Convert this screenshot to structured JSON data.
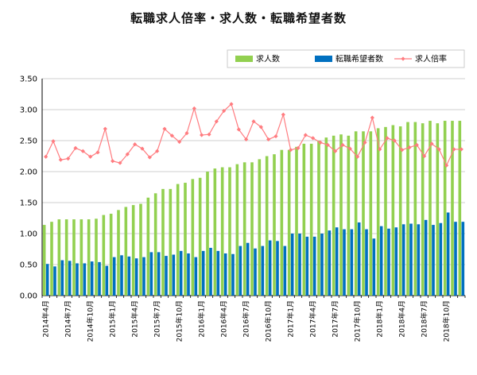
{
  "chart_data": {
    "type": "bar",
    "title": "転職求人倍率・求人数・転職希望者数",
    "xlabel": "",
    "ylabel": "",
    "ylim": [
      0,
      3.5
    ],
    "yticks": [
      "0.00",
      "0.50",
      "1.00",
      "1.50",
      "2.00",
      "2.50",
      "3.00",
      "3.50"
    ],
    "grid": "horizontal",
    "legend_position": "top-right",
    "categories": [
      "2014年4月",
      "2014年5月",
      "2014年6月",
      "2014年7月",
      "2014年8月",
      "2014年9月",
      "2014年10月",
      "2014年11月",
      "2014年12月",
      "2015年1月",
      "2015年2月",
      "2015年3月",
      "2015年4月",
      "2015年5月",
      "2015年6月",
      "2015年7月",
      "2015年8月",
      "2015年9月",
      "2015年10月",
      "2015年11月",
      "2015年12月",
      "2016年1月",
      "2016年2月",
      "2016年3月",
      "2016年4月",
      "2016年5月",
      "2016年6月",
      "2016年7月",
      "2016年8月",
      "2016年9月",
      "2016年10月",
      "2016年11月",
      "2016年12月",
      "2017年1月",
      "2017年2月",
      "2017年3月",
      "2017年4月",
      "2017年5月",
      "2017年6月",
      "2017年7月",
      "2017年8月",
      "2017年9月",
      "2017年10月",
      "2017年11月",
      "2017年12月",
      "2018年1月",
      "2018年2月",
      "2018年3月",
      "2018年4月",
      "2018年5月",
      "2018年6月",
      "2018年7月",
      "2018年8月",
      "2018年9月",
      "2018年10月",
      "2018年11月",
      "2018年12月"
    ],
    "shown_tick_labels": [
      "2014年4月",
      "2014年7月",
      "2014年10月",
      "2015年1月",
      "2015年4月",
      "2015年7月",
      "2015年10月",
      "2016年1月",
      "2016年4月",
      "2016年7月",
      "2016年10月",
      "2017年1月",
      "2017年4月",
      "2017年7月",
      "2017年10月",
      "2018年1月",
      "2018年4月",
      "2018年7月",
      "2018年10月"
    ],
    "series": [
      {
        "name": "求人数",
        "kind": "bar",
        "color": "#92d050",
        "values": [
          1.14,
          1.19,
          1.23,
          1.23,
          1.23,
          1.23,
          1.23,
          1.24,
          1.3,
          1.32,
          1.38,
          1.43,
          1.46,
          1.48,
          1.58,
          1.65,
          1.72,
          1.72,
          1.8,
          1.82,
          1.88,
          1.9,
          2.0,
          2.05,
          2.07,
          2.07,
          2.12,
          2.15,
          2.15,
          2.2,
          2.25,
          2.28,
          2.35,
          2.35,
          2.4,
          2.45,
          2.45,
          2.5,
          2.55,
          2.58,
          2.6,
          2.58,
          2.65,
          2.65,
          2.65,
          2.7,
          2.72,
          2.75,
          2.73,
          2.8,
          2.8,
          2.78,
          2.82,
          2.78,
          2.82,
          2.82,
          2.82
        ]
      },
      {
        "name": "転職希望者数",
        "kind": "bar",
        "color": "#0070c0",
        "values": [
          0.51,
          0.47,
          0.57,
          0.56,
          0.52,
          0.52,
          0.55,
          0.54,
          0.48,
          0.62,
          0.65,
          0.63,
          0.6,
          0.62,
          0.7,
          0.7,
          0.64,
          0.66,
          0.72,
          0.68,
          0.62,
          0.72,
          0.77,
          0.72,
          0.68,
          0.67,
          0.8,
          0.85,
          0.76,
          0.8,
          0.89,
          0.88,
          0.8,
          1.0,
          1.0,
          0.95,
          0.95,
          1.0,
          1.05,
          1.1,
          1.07,
          1.07,
          1.18,
          1.07,
          0.92,
          1.12,
          1.08,
          1.1,
          1.15,
          1.16,
          1.15,
          1.22,
          1.14,
          1.17,
          1.34,
          1.19,
          1.19
        ]
      },
      {
        "name": "求人倍率",
        "kind": "line",
        "color": "#ff7c80",
        "values": [
          2.24,
          2.49,
          2.19,
          2.21,
          2.38,
          2.33,
          2.24,
          2.31,
          2.69,
          2.17,
          2.14,
          2.28,
          2.44,
          2.37,
          2.23,
          2.33,
          2.69,
          2.58,
          2.48,
          2.62,
          3.02,
          2.59,
          2.6,
          2.81,
          2.98,
          3.09,
          2.68,
          2.52,
          2.81,
          2.72,
          2.52,
          2.57,
          2.92,
          2.35,
          2.38,
          2.59,
          2.54,
          2.47,
          2.43,
          2.33,
          2.43,
          2.37,
          2.24,
          2.47,
          2.87,
          2.36,
          2.54,
          2.5,
          2.35,
          2.39,
          2.43,
          2.25,
          2.45,
          2.36,
          2.1,
          2.36,
          2.36
        ]
      }
    ]
  }
}
